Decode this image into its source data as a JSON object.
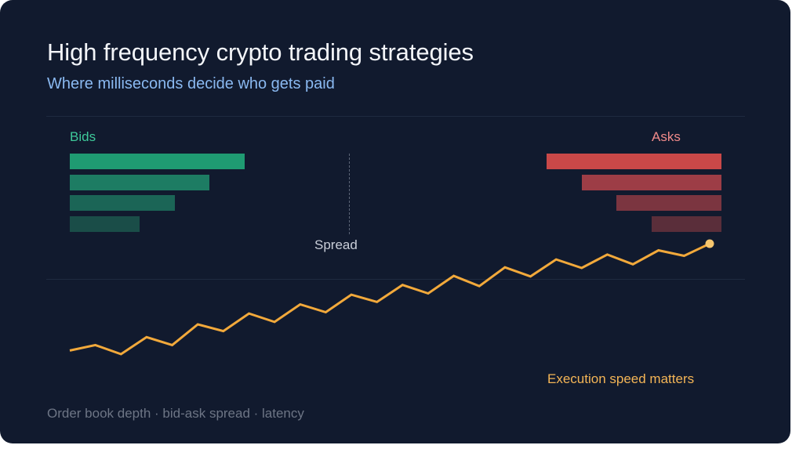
{
  "header": {
    "title": "High frequency crypto trading strategies",
    "subtitle": "Where milliseconds decide who gets paid"
  },
  "order_book": {
    "bids_label": "Bids",
    "asks_label": "Asks",
    "spread_label": "Spread",
    "bids": [
      {
        "depth": 1.0,
        "color": "#1f9b72"
      },
      {
        "depth": 0.8,
        "color": "#1d7c63"
      },
      {
        "depth": 0.6,
        "color": "#1b6556"
      },
      {
        "depth": 0.4,
        "color": "#1a4d48"
      }
    ],
    "asks": [
      {
        "depth": 1.0,
        "color": "#c94848"
      },
      {
        "depth": 0.8,
        "color": "#9d3d46"
      },
      {
        "depth": 0.6,
        "color": "#7b3540"
      },
      {
        "depth": 0.4,
        "color": "#5a2e3a"
      }
    ]
  },
  "price_line": {
    "label": "Execution speed matters",
    "color": "#f2a93b",
    "end_dot_color": "#f6c66e",
    "values": [
      6,
      15,
      0,
      28,
      15,
      49,
      38,
      67,
      53,
      82,
      69,
      98,
      86,
      114,
      100,
      129,
      112,
      143,
      128,
      156,
      142,
      164,
      148,
      171,
      162,
      182
    ]
  },
  "footer": {
    "text": "Order book depth · bid-ask spread · latency"
  }
}
